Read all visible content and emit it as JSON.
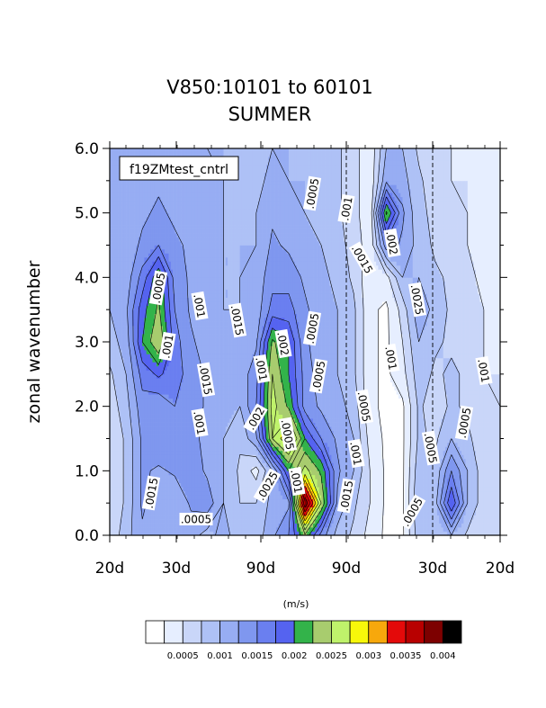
{
  "title": "V850:10101 to 60101",
  "subtitle": "SUMMER",
  "colorbar_title": "(m/s)",
  "chart_data": {
    "type": "heatmap",
    "case_label": "f19ZMtest_cntrl",
    "ylabel": "zonal wavenumber",
    "yticks": [
      "0.0",
      "1.0",
      "2.0",
      "3.0",
      "4.0",
      "5.0",
      "6.0"
    ],
    "ylim": [
      0,
      6
    ],
    "xticks": [
      "20d",
      "30d",
      "90d",
      "90d",
      "30d",
      "20d"
    ],
    "x": [
      -6,
      -5,
      -4,
      -3,
      -2,
      -1,
      0,
      1,
      2,
      3,
      4,
      5,
      6,
      7,
      8,
      9,
      10,
      11,
      12,
      13,
      14,
      15,
      16,
      17,
      18
    ],
    "y": [
      0,
      0.5,
      1,
      1.5,
      2,
      2.5,
      3,
      3.5,
      4,
      4.5,
      5,
      5.5,
      6
    ],
    "z": [
      [
        0.00055,
        0.0009,
        0.0012,
        0.0011,
        0.0012,
        0.0011,
        0.0009,
        0.0011,
        0.00085,
        0.00085,
        0.0012,
        0.0015,
        0.0022,
        0.0014,
        0.0009,
        0.0007,
        0.0004,
        0.0002,
        0.0002,
        0.0009,
        0.0008,
        0.001,
        0.0007,
        0.0005,
        0.0006
      ],
      [
        0.0005,
        0.0008,
        0.0013,
        0.0011,
        0.001,
        0.0013,
        0.0014,
        0.001,
        0.00075,
        0.00075,
        0.0011,
        0.0012,
        0.004,
        0.0025,
        0.0012,
        0.0008,
        0.0005,
        0.0002,
        0.0002,
        0.001,
        0.0009,
        0.002,
        0.001,
        0.0006,
        0.0006
      ],
      [
        0.0005,
        0.0008,
        0.0013,
        0.0012,
        0.0013,
        0.0014,
        0.0012,
        0.001,
        0.0007,
        0.0004,
        0.001,
        0.002,
        0.0026,
        0.0022,
        0.0013,
        0.001,
        0.0005,
        0.0002,
        0.0002,
        0.0009,
        0.0008,
        0.0015,
        0.001,
        0.0006,
        0.0005
      ],
      [
        0.0005,
        0.0008,
        0.0013,
        0.0015,
        0.0013,
        0.0013,
        0.0012,
        0.001,
        0.0008,
        0.0012,
        0.0025,
        0.003,
        0.002,
        0.0015,
        0.0012,
        0.001,
        0.0004,
        0.0002,
        0.0002,
        0.0008,
        0.0007,
        0.001,
        0.0008,
        0.0006,
        0.0005
      ],
      [
        0.0006,
        0.0009,
        0.0014,
        0.0013,
        0.0015,
        0.0014,
        0.0012,
        0.0011,
        0.001,
        0.0015,
        0.0026,
        0.0022,
        0.0014,
        0.0012,
        0.0011,
        0.0009,
        0.0003,
        0.0002,
        0.0002,
        0.0008,
        0.0006,
        0.0008,
        0.0007,
        0.0006,
        0.0005
      ],
      [
        0.0007,
        0.001,
        0.0016,
        0.0018,
        0.0016,
        0.0014,
        0.0012,
        0.0011,
        0.0011,
        0.0014,
        0.0025,
        0.002,
        0.0014,
        0.0011,
        0.001,
        0.0008,
        0.0003,
        0.0002,
        0.0004,
        0.0009,
        0.0007,
        0.0008,
        0.0007,
        0.0005,
        0.0005
      ],
      [
        0.0009,
        0.0011,
        0.002,
        0.0025,
        0.0016,
        0.0013,
        0.0011,
        0.0011,
        0.0011,
        0.0012,
        0.0023,
        0.002,
        0.0013,
        0.0011,
        0.001,
        0.0008,
        0.0003,
        0.0002,
        0.0005,
        0.001,
        0.0008,
        0.0007,
        0.0007,
        0.0005,
        0.0004
      ],
      [
        0.001,
        0.0012,
        0.0019,
        0.0023,
        0.0015,
        0.0012,
        0.0011,
        0.001,
        0.001,
        0.0011,
        0.0016,
        0.0016,
        0.0013,
        0.0011,
        0.001,
        0.0008,
        0.0003,
        0.0002,
        0.0006,
        0.0012,
        0.0009,
        0.0007,
        0.0006,
        0.0005,
        0.0004
      ],
      [
        0.001,
        0.0011,
        0.0016,
        0.0022,
        0.0014,
        0.0012,
        0.0011,
        0.001,
        0.001,
        0.0011,
        0.0014,
        0.0014,
        0.0012,
        0.0011,
        0.0009,
        0.0007,
        0.0003,
        0.0004,
        0.001,
        0.001,
        0.0008,
        0.0007,
        0.0006,
        0.0004,
        0.0003
      ],
      [
        0.0011,
        0.0011,
        0.0013,
        0.0015,
        0.0013,
        0.0012,
        0.0011,
        0.001,
        0.001,
        0.001,
        0.0013,
        0.0012,
        0.0011,
        0.001,
        0.0008,
        0.0007,
        0.0003,
        0.0014,
        0.0012,
        0.0009,
        0.0007,
        0.0006,
        0.0005,
        0.0004,
        0.0003
      ],
      [
        0.0012,
        0.0012,
        0.0012,
        0.0013,
        0.0012,
        0.0011,
        0.0011,
        0.001,
        0.0009,
        0.001,
        0.0012,
        0.0011,
        0.001,
        0.0009,
        0.0008,
        0.0006,
        0.0003,
        0.0023,
        0.0013,
        0.0008,
        0.0007,
        0.0006,
        0.0005,
        0.0003,
        0.0003
      ],
      [
        0.0012,
        0.0012,
        0.0012,
        0.0012,
        0.0012,
        0.0011,
        0.0011,
        0.001,
        0.0009,
        0.0009,
        0.0011,
        0.001,
        0.001,
        0.0009,
        0.0008,
        0.0006,
        0.0003,
        0.0012,
        0.0011,
        0.0008,
        0.0006,
        0.0005,
        0.0005,
        0.0003,
        0.0003
      ],
      [
        0.0012,
        0.0012,
        0.0012,
        0.0012,
        0.0011,
        0.0011,
        0.001,
        0.001,
        0.0009,
        0.0009,
        0.001,
        0.001,
        0.0009,
        0.0009,
        0.0008,
        0.0006,
        0.0003,
        0.001,
        0.001,
        0.0007,
        0.0006,
        0.0005,
        0.0004,
        0.0003,
        0.0003
      ]
    ],
    "levels": [
      0.00025,
      0.0005,
      0.00075,
      0.001,
      0.00125,
      0.0015,
      0.00175,
      0.002,
      0.00225,
      0.0025,
      0.00275,
      0.003,
      0.00325,
      0.0035,
      0.00375,
      0.004
    ],
    "colors": [
      "#ffffff",
      "#e6eeff",
      "#c9d6f9",
      "#aec1f6",
      "#97adf3",
      "#7f97ef",
      "#6a7ff0",
      "#5563f0",
      "#33b34a",
      "#a8cc6e",
      "#bff26b",
      "#f8f80a",
      "#f7a80c",
      "#e40a0a",
      "#b80000",
      "#7d0000",
      "#000000"
    ],
    "colorbar_labels": [
      "0.0005",
      "0.001",
      "0.0015",
      "0.002",
      "0.0025",
      "0.003",
      "0.0035",
      "0.004"
    ],
    "contour_labels": [
      ".0005",
      ".001",
      ".0015",
      ".002",
      ".0025",
      ".0005",
      ".001",
      ".0015",
      ".002",
      ".0005",
      ".001",
      ".0015",
      ".001",
      ".0005",
      ".001",
      ".0005",
      ".001",
      ".0005",
      ".001",
      ".0005",
      ".001",
      ".0005",
      ".001",
      ".0005",
      ".0005",
      ".0015",
      ".001",
      ".001",
      ".001",
      ".0015",
      ".0015",
      ".0025",
      ".002",
      ".001",
      ".0005",
      ".001",
      ".0005"
    ]
  }
}
